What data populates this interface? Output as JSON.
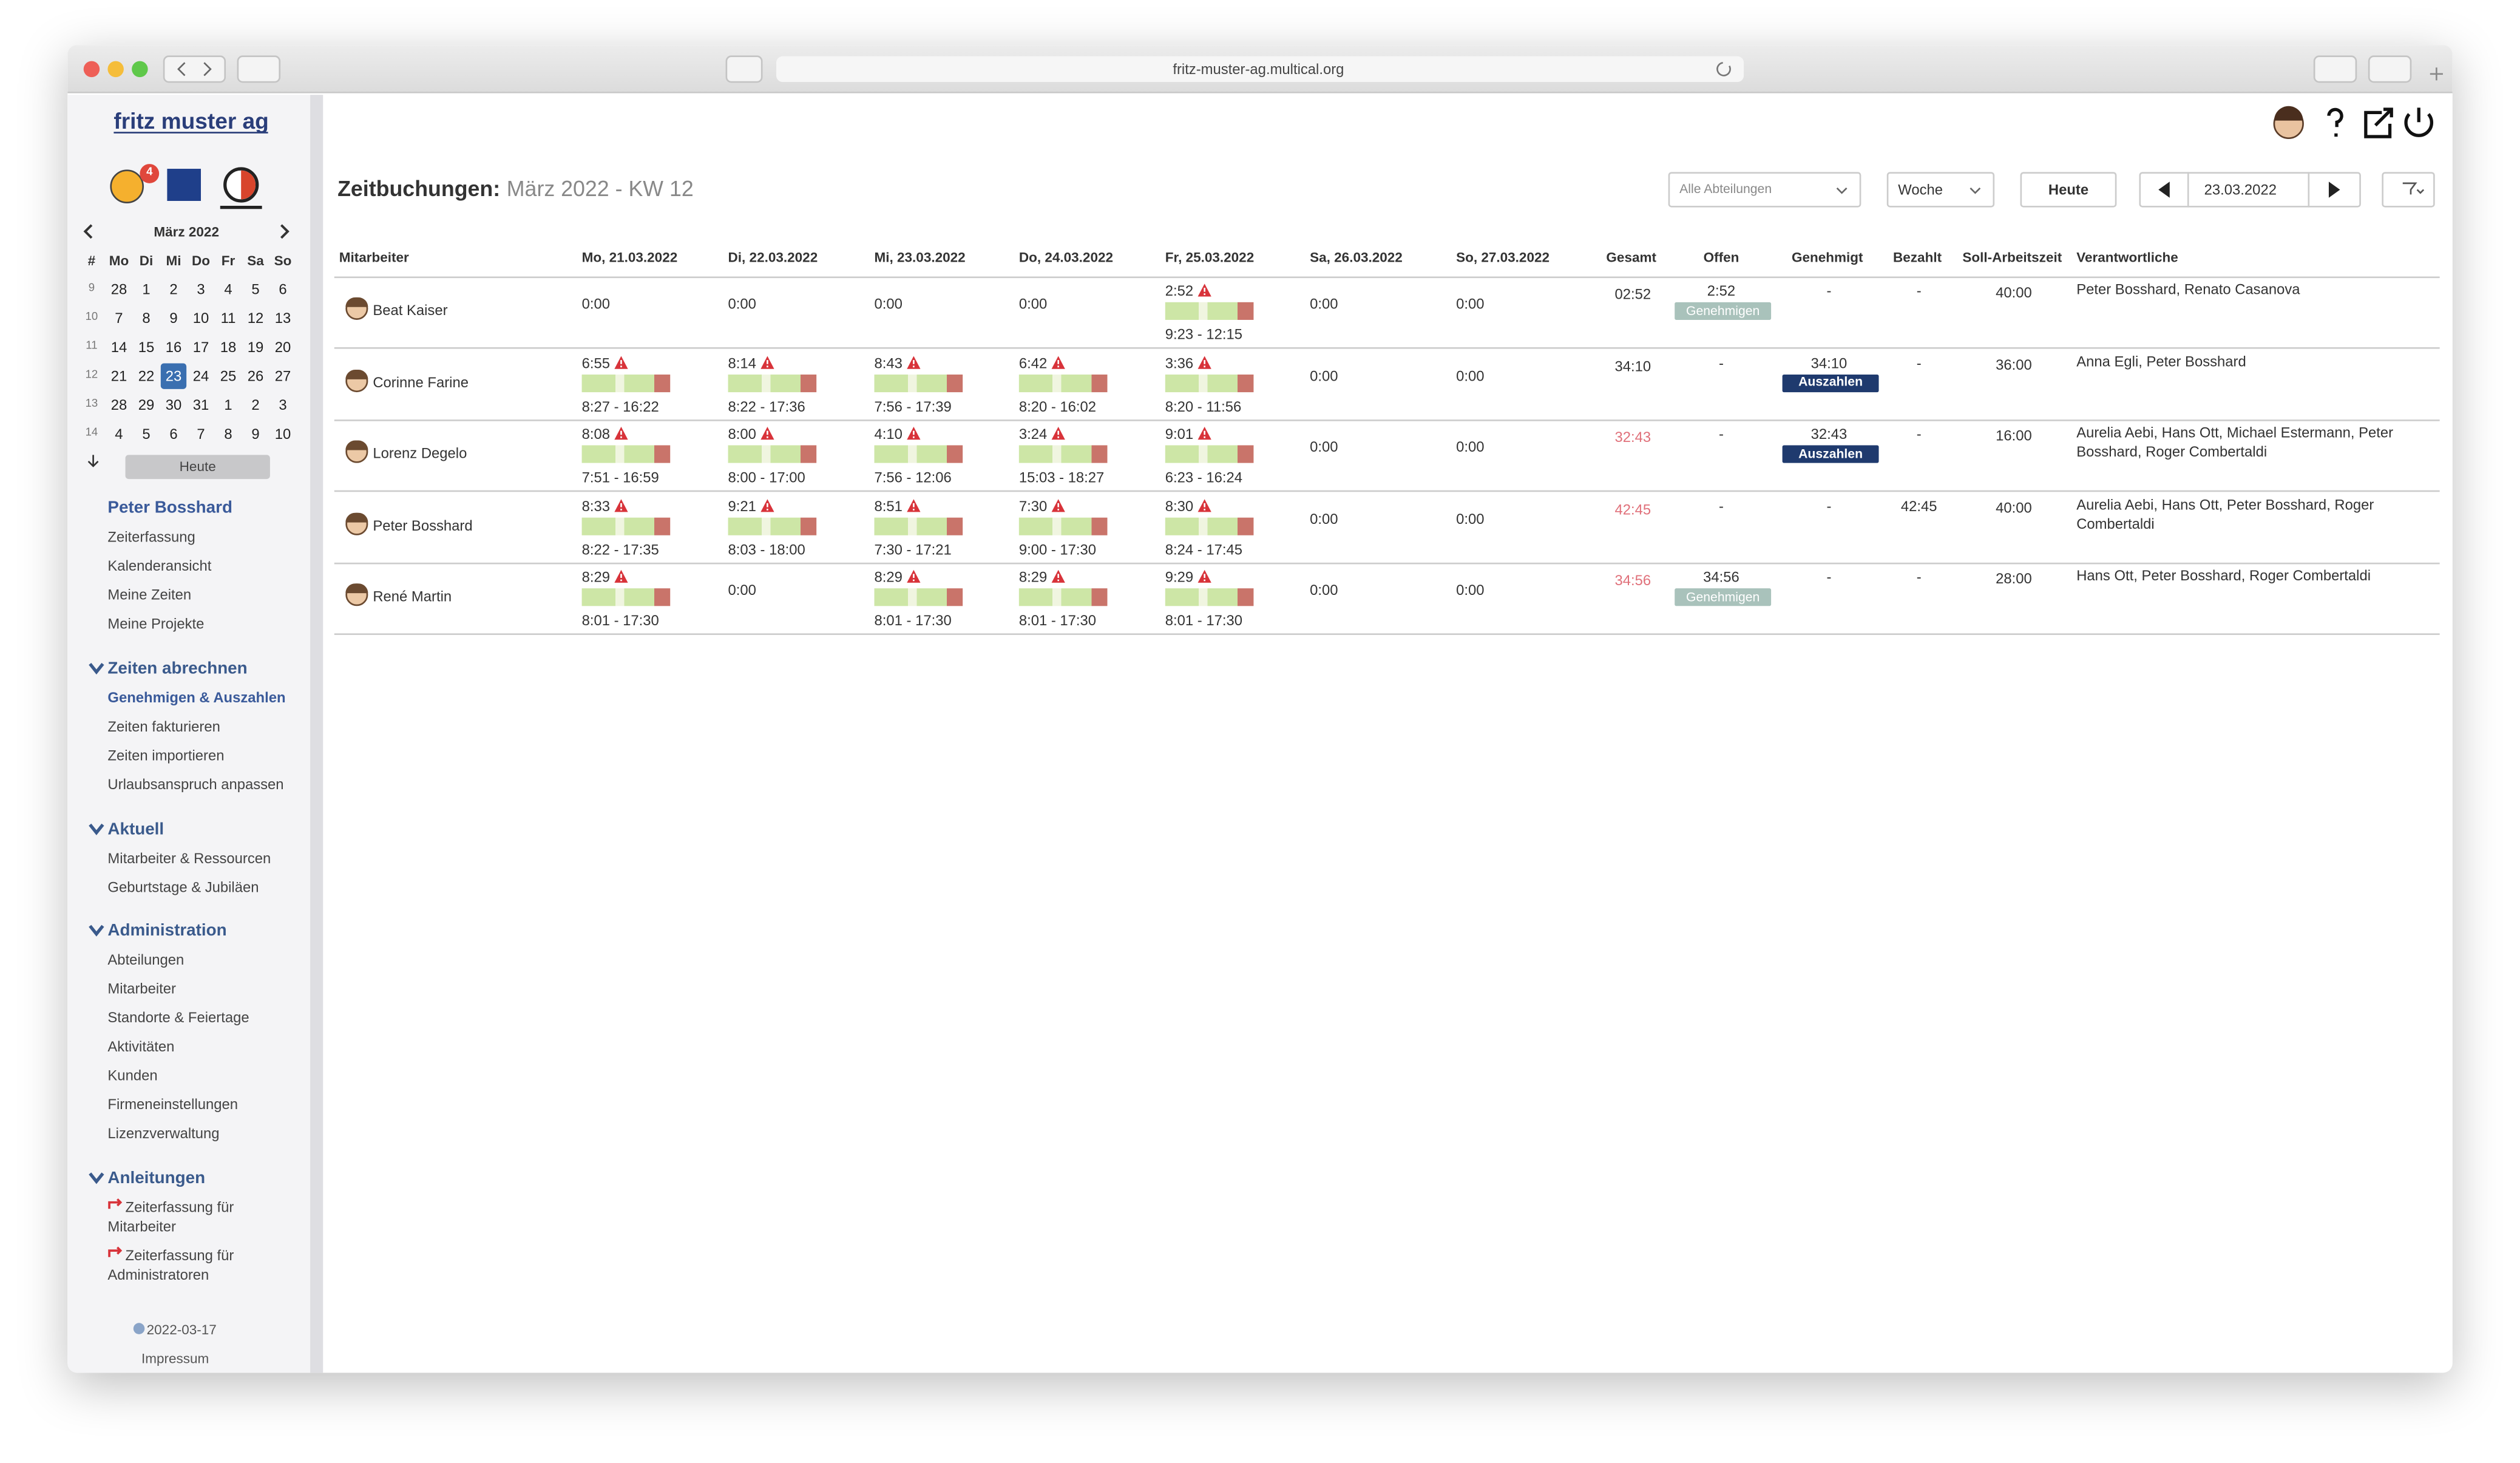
{
  "browser": {
    "url": "fritz-muster-ag.multical.org"
  },
  "sidebar": {
    "logo": "fritz muster ag",
    "badge": "4",
    "calendar": {
      "month": "März 2022",
      "headers": [
        "#",
        "Mo",
        "Di",
        "Mi",
        "Do",
        "Fr",
        "Sa",
        "So"
      ],
      "weeks": [
        [
          "9",
          "28",
          "1",
          "2",
          "3",
          "4",
          "5",
          "6"
        ],
        [
          "10",
          "7",
          "8",
          "9",
          "10",
          "11",
          "12",
          "13"
        ],
        [
          "11",
          "14",
          "15",
          "16",
          "17",
          "18",
          "19",
          "20"
        ],
        [
          "12",
          "21",
          "22",
          "23",
          "24",
          "25",
          "26",
          "27"
        ],
        [
          "13",
          "28",
          "29",
          "30",
          "31",
          "1",
          "2",
          "3"
        ],
        [
          "14",
          "4",
          "5",
          "6",
          "7",
          "8",
          "9",
          "10"
        ]
      ],
      "selected": "23",
      "today": "Heute"
    },
    "user": "Peter Bosshard",
    "user_links": [
      "Zeiterfassung",
      "Kalenderansicht",
      "Meine Zeiten",
      "Meine Projekte"
    ],
    "sections": [
      {
        "title": "Zeiten abrechnen",
        "items": [
          {
            "label": "Genehmigen & Auszahlen",
            "active": true
          },
          "Zeiten fakturieren",
          "Zeiten importieren",
          "Urlaubsanspruch anpassen"
        ]
      },
      {
        "title": "Aktuell",
        "items": [
          "Mitarbeiter & Ressourcen",
          "Geburtstage & Jubiläen"
        ]
      },
      {
        "title": "Administration",
        "items": [
          "Abteilungen",
          "Mitarbeiter",
          "Standorte & Feiertage",
          "Aktivitäten",
          "Kunden",
          "Firmeneinstellungen",
          "Lizenzverwaltung"
        ]
      },
      {
        "title": "Anleitungen",
        "items": [
          "Zeiterfassung für Mitarbeiter",
          "Zeiterfassung für Administratoren"
        ]
      }
    ],
    "version": "2022-03-17",
    "imprint": "Impressum"
  },
  "header": {
    "title": "Zeitbuchungen:",
    "subtitle": "März 2022 - KW 12",
    "department": "Alle Abteilungen",
    "view": "Woche",
    "today": "Heute",
    "date": "23.03.2022"
  },
  "table": {
    "headers": [
      "Mitarbeiter",
      "Mo, 21.03.2022",
      "Di, 22.03.2022",
      "Mi, 23.03.2022",
      "Do, 24.03.2022",
      "Fr, 25.03.2022",
      "Sa, 26.03.2022",
      "So, 27.03.2022",
      "Gesamt",
      "Offen",
      "Genehmigt",
      "Bezahlt",
      "Soll-Arbeitszeit",
      "Verantwortliche"
    ],
    "rows": [
      {
        "name": "Beat Kaiser",
        "days": [
          {
            "hours": "0:00"
          },
          {
            "hours": "0:00"
          },
          {
            "hours": "0:00"
          },
          {
            "hours": "0:00"
          },
          {
            "hours": "2:52",
            "warning": true,
            "range": "9:23 - 12:15"
          },
          {
            "hours": "0:00"
          },
          {
            "hours": "0:00"
          }
        ],
        "total": "02:52",
        "total_alert": false,
        "open": "2:52",
        "open_action": "Genehmigen",
        "approved": "-",
        "paid": "-",
        "target": "40:00",
        "responsible": "Peter Bosshard, Renato Casanova"
      },
      {
        "name": "Corinne Farine",
        "days": [
          {
            "hours": "6:55",
            "warning": true,
            "range": "8:27 - 16:22"
          },
          {
            "hours": "8:14",
            "warning": true,
            "range": "8:22 - 17:36"
          },
          {
            "hours": "8:43",
            "warning": true,
            "range": "7:56 - 17:39"
          },
          {
            "hours": "6:42",
            "warning": true,
            "range": "8:20 - 16:02"
          },
          {
            "hours": "3:36",
            "warning": true,
            "range": "8:20 - 11:56"
          },
          {
            "hours": "0:00"
          },
          {
            "hours": "0:00"
          }
        ],
        "total": "34:10",
        "total_alert": false,
        "open": "-",
        "approved": "34:10",
        "approved_action": "Auszahlen",
        "paid": "-",
        "target": "36:00",
        "responsible": "Anna Egli, Peter Bosshard"
      },
      {
        "name": "Lorenz Degelo",
        "days": [
          {
            "hours": "8:08",
            "warning": true,
            "range": "7:51 - 16:59"
          },
          {
            "hours": "8:00",
            "warning": true,
            "range": "8:00 - 17:00"
          },
          {
            "hours": "4:10",
            "warning": true,
            "range": "7:56 - 12:06"
          },
          {
            "hours": "3:24",
            "warning": true,
            "range": "15:03 - 18:27"
          },
          {
            "hours": "9:01",
            "warning": true,
            "range": "6:23 - 16:24"
          },
          {
            "hours": "0:00"
          },
          {
            "hours": "0:00"
          }
        ],
        "total": "32:43",
        "total_alert": true,
        "open": "-",
        "approved": "32:43",
        "approved_action": "Auszahlen",
        "paid": "-",
        "target": "16:00",
        "responsible": "Aurelia Aebi, Hans Ott, Michael Estermann, Peter Bosshard, Roger Combertaldi"
      },
      {
        "name": "Peter Bosshard",
        "days": [
          {
            "hours": "8:33",
            "warning": true,
            "range": "8:22 - 17:35"
          },
          {
            "hours": "9:21",
            "warning": true,
            "range": "8:03 - 18:00"
          },
          {
            "hours": "8:51",
            "warning": true,
            "range": "7:30 - 17:21"
          },
          {
            "hours": "7:30",
            "warning": true,
            "range": "9:00 - 17:30"
          },
          {
            "hours": "8:30",
            "warning": true,
            "range": "8:24 - 17:45"
          },
          {
            "hours": "0:00"
          },
          {
            "hours": "0:00"
          }
        ],
        "total": "42:45",
        "total_alert": true,
        "open": "-",
        "approved": "-",
        "paid": "42:45",
        "target": "40:00",
        "responsible": "Aurelia Aebi, Hans Ott, Peter Bosshard, Roger Combertaldi"
      },
      {
        "name": "René Martin",
        "days": [
          {
            "hours": "8:29",
            "warning": true,
            "range": "8:01 - 17:30"
          },
          {
            "hours": "0:00"
          },
          {
            "hours": "8:29",
            "warning": true,
            "range": "8:01 - 17:30"
          },
          {
            "hours": "8:29",
            "warning": true,
            "range": "8:01 - 17:30"
          },
          {
            "hours": "9:29",
            "warning": true,
            "range": "8:01 - 17:30"
          },
          {
            "hours": "0:00"
          },
          {
            "hours": "0:00"
          }
        ],
        "total": "34:56",
        "total_alert": true,
        "open": "34:56",
        "open_action": "Genehmigen",
        "approved": "-",
        "paid": "-",
        "target": "28:00",
        "responsible": "Hans Ott, Peter Bosshard, Roger Combertaldi"
      }
    ]
  }
}
